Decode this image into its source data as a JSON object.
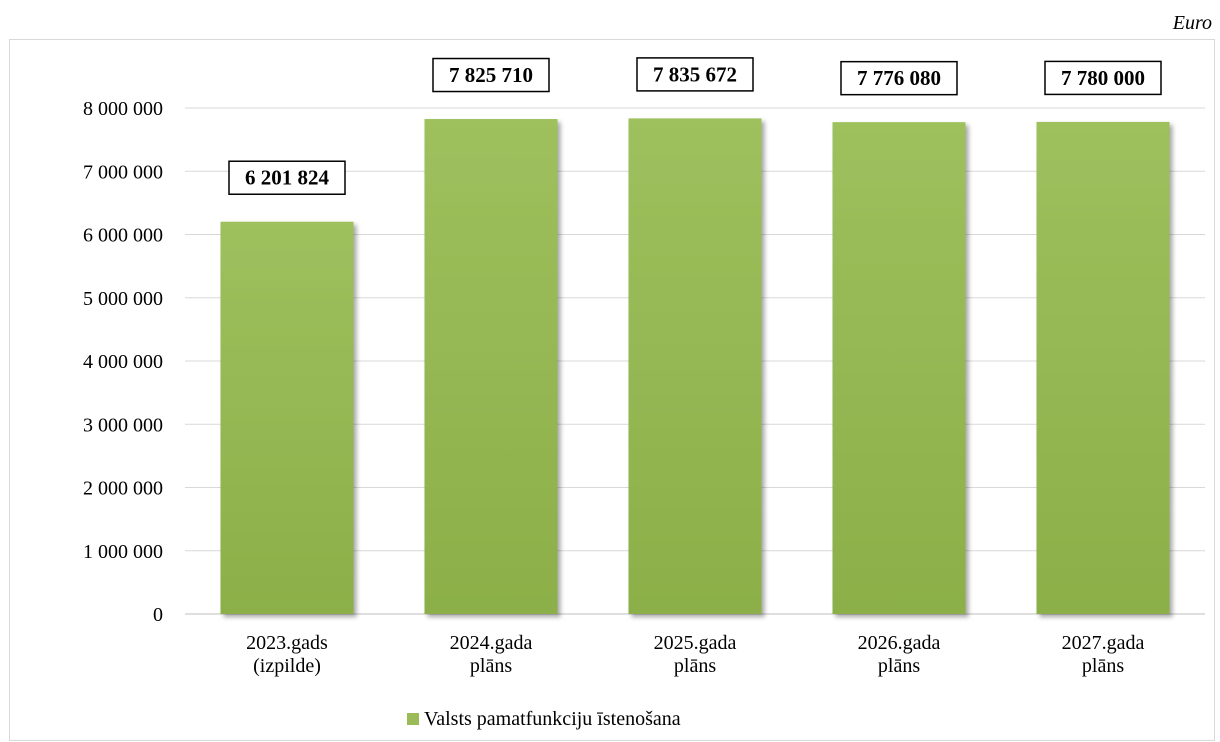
{
  "unit_label": "Euro",
  "chart_data": {
    "type": "bar",
    "title": "",
    "xlabel": "",
    "ylabel": "",
    "categories": [
      [
        "2023.gads",
        "(izpilde)"
      ],
      [
        "2024.gada",
        "plāns"
      ],
      [
        "2025.gada",
        "plāns"
      ],
      [
        "2026.gada",
        "plāns"
      ],
      [
        "2027.gada",
        "plāns"
      ]
    ],
    "series": [
      {
        "name": "Valsts pamatfunkciju īstenošana",
        "values": [
          6201824,
          7825710,
          7835672,
          7776080,
          7780000
        ],
        "color": "#9bbb59"
      }
    ],
    "data_labels": [
      "6 201 824",
      "7 825 710",
      "7 835 672",
      "7 776 080",
      "7 780 000"
    ],
    "y_ticks": [
      {
        "value": 0,
        "label": "0"
      },
      {
        "value": 1000000,
        "label": "1 000 000"
      },
      {
        "value": 2000000,
        "label": "2 000 000"
      },
      {
        "value": 3000000,
        "label": "3 000 000"
      },
      {
        "value": 4000000,
        "label": "4 000 000"
      },
      {
        "value": 5000000,
        "label": "5 000 000"
      },
      {
        "value": 6000000,
        "label": "6 000 000"
      },
      {
        "value": 7000000,
        "label": "7 000 000"
      },
      {
        "value": 8000000,
        "label": "8 000 000"
      }
    ],
    "ylim": [
      0,
      8000000
    ],
    "grid": true,
    "legend_position": "bottom"
  }
}
